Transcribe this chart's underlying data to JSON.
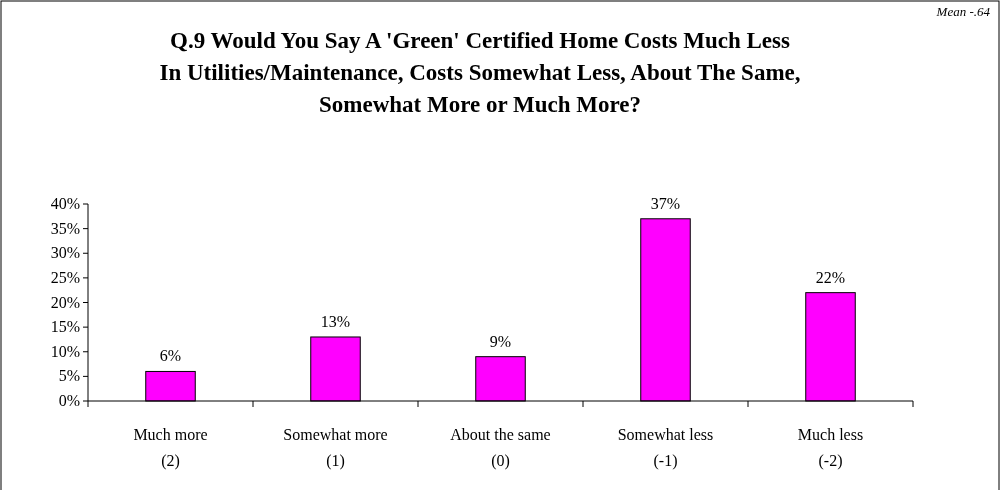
{
  "chart_data": {
    "type": "bar",
    "title": "Q.9  Would You Say A 'Green' Certified Home Costs Much Less In Utilities/Maintenance, Costs Somewhat Less, About The Same, Somewhat More or Much More?",
    "categories": [
      "Much more\n(2)",
      "Somewhat more\n(1)",
      "About the same\n(0)",
      "Somewhat less\n(-1)",
      "Much less\n(-2)"
    ],
    "values": [
      6,
      13,
      9,
      37,
      22
    ],
    "color": "#ff00ff",
    "ylim": [
      0,
      40
    ],
    "yticks": [
      {
        "value": 0,
        "label": "0%"
      },
      {
        "value": 5,
        "label": "5%"
      },
      {
        "value": 10,
        "label": "10%"
      },
      {
        "value": 15,
        "label": "15%"
      },
      {
        "value": 20,
        "label": "20%"
      },
      {
        "value": 25,
        "label": "25%"
      },
      {
        "value": 30,
        "label": "30%"
      },
      {
        "value": 35,
        "label": "35%"
      },
      {
        "value": 40,
        "label": "40%"
      }
    ],
    "value_labels": [
      "6%",
      "13%",
      "9%",
      "37%",
      "22%"
    ],
    "annotations": [
      "Mean -.64"
    ]
  }
}
